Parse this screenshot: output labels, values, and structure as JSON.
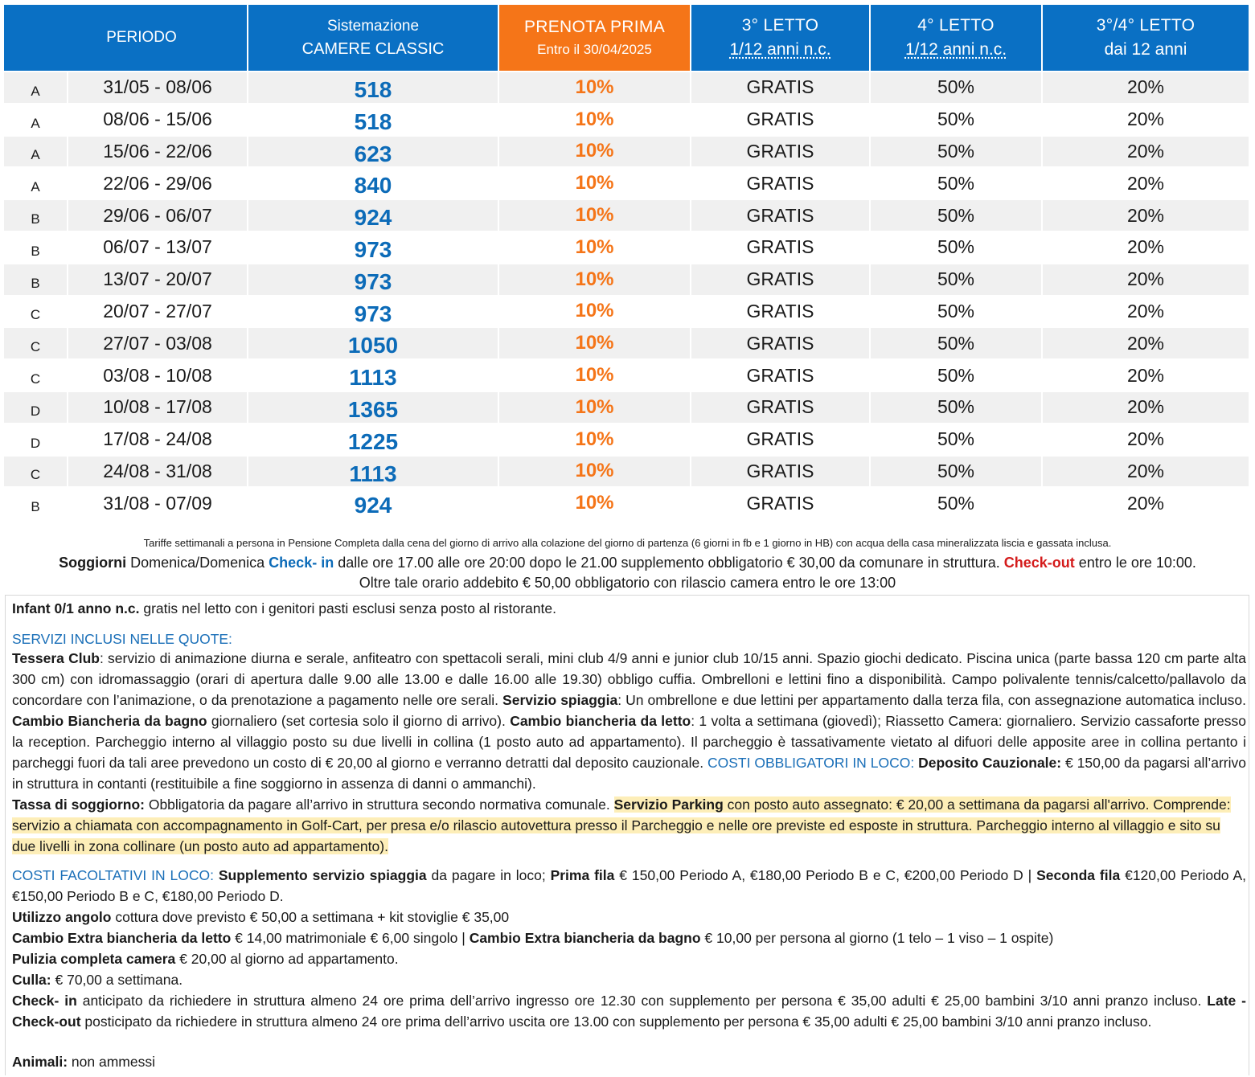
{
  "header": {
    "periodo": "PERIODO",
    "sistemazione_l1": "Sistemazione",
    "sistemazione_l2": "CAMERE CLASSIC",
    "prenota_l1": "PRENOTA PRIMA",
    "prenota_l2": "Entro il 30/04/2025",
    "letto3_l1": "3° LETTO",
    "letto3_l2": "1/12 anni n.c.",
    "letto4_l1": "4° LETTO",
    "letto4_l2": "1/12 anni n.c.",
    "letto34_l1": "3°/4° LETTO",
    "letto34_l2": "dai 12 anni"
  },
  "rows": [
    {
      "cat": "A",
      "period": "31/05 - 08/06",
      "price": "518",
      "disc": "10%",
      "l3": "GRATIS",
      "l4": "50%",
      "l34": "20%"
    },
    {
      "cat": "A",
      "period": "08/06 - 15/06",
      "price": "518",
      "disc": "10%",
      "l3": "GRATIS",
      "l4": "50%",
      "l34": "20%"
    },
    {
      "cat": "A",
      "period": "15/06 - 22/06",
      "price": "623",
      "disc": "10%",
      "l3": "GRATIS",
      "l4": "50%",
      "l34": "20%"
    },
    {
      "cat": "A",
      "period": "22/06 - 29/06",
      "price": "840",
      "disc": "10%",
      "l3": "GRATIS",
      "l4": "50%",
      "l34": "20%"
    },
    {
      "cat": "B",
      "period": "29/06 - 06/07",
      "price": "924",
      "disc": "10%",
      "l3": "GRATIS",
      "l4": "50%",
      "l34": "20%"
    },
    {
      "cat": "B",
      "period": "06/07 - 13/07",
      "price": "973",
      "disc": "10%",
      "l3": "GRATIS",
      "l4": "50%",
      "l34": "20%"
    },
    {
      "cat": "B",
      "period": "13/07 - 20/07",
      "price": "973",
      "disc": "10%",
      "l3": "GRATIS",
      "l4": "50%",
      "l34": "20%"
    },
    {
      "cat": "C",
      "period": "20/07 - 27/07",
      "price": "973",
      "disc": "10%",
      "l3": "GRATIS",
      "l4": "50%",
      "l34": "20%"
    },
    {
      "cat": "C",
      "period": "27/07 - 03/08",
      "price": "1050",
      "disc": "10%",
      "l3": "GRATIS",
      "l4": "50%",
      "l34": "20%"
    },
    {
      "cat": "C",
      "period": "03/08 - 10/08",
      "price": "1113",
      "disc": "10%",
      "l3": "GRATIS",
      "l4": "50%",
      "l34": "20%"
    },
    {
      "cat": "D",
      "period": "10/08 - 17/08",
      "price": "1365",
      "disc": "10%",
      "l3": "GRATIS",
      "l4": "50%",
      "l34": "20%"
    },
    {
      "cat": "D",
      "period": "17/08 - 24/08",
      "price": "1225",
      "disc": "10%",
      "l3": "GRATIS",
      "l4": "50%",
      "l34": "20%"
    },
    {
      "cat": "C",
      "period": "24/08 - 31/08",
      "price": "1113",
      "disc": "10%",
      "l3": "GRATIS",
      "l4": "50%",
      "l34": "20%"
    },
    {
      "cat": "B",
      "period": "31/08 - 07/09",
      "price": "924",
      "disc": "10%",
      "l3": "GRATIS",
      "l4": "50%",
      "l34": "20%"
    }
  ],
  "notes": {
    "tariffe": "Tariffe settimanali a persona in Pensione Completa dalla cena del giorno di arrivo alla colazione del giorno di partenza (6 giorni in fb e 1 giorno in HB) con acqua della casa mineralizzata liscia e gassata inclusa.",
    "soggiorni_bold": "Soggiorni",
    "soggiorni_text": " Domenica/Domenica ",
    "checkin_label": "Check- in",
    "checkin_text": " dalle ore 17.00 alle ore 20:00 dopo le 21.00 supplemento obbligatorio € 30,00 da comunare in struttura. ",
    "checkout_label": "Check-out",
    "checkout_text": " entro le ore 10:00.",
    "oltre": "Oltre tale orario addebito € 50,00 obbligatorio con rilascio camera entro le ore 13:00"
  },
  "details": {
    "infant_bold": "Infant 0/1 anno n.c.",
    "infant_text": " gratis nel letto con i genitori pasti esclusi senza posto al ristorante.",
    "servizi_title": "SERVIZI INCLUSI NELLE QUOTE:",
    "tessera_bold": "Tessera Club",
    "tessera_text": ": servizio di animazione diurna e serale, anfiteatro con spettacoli serali, mini club 4/9 anni e junior club 10/15 anni. Spazio giochi dedicato. Piscina unica (parte bassa 120 cm parte alta 300 cm) con idromassaggio (orari di apertura dalle 9.00 alle 13.00 e dalle 16.00 alle 19.30) obbligo cuffia. Ombrelloni e lettini fino a disponibilità. Campo polivalente tennis/calcetto/pallavolo da concordare con l’animazione, o da prenotazione a pagamento nelle ore serali. ",
    "spiaggia_bold": "Servizio spiaggia",
    "spiaggia_text": ": Un ombrellone e due lettini per appartamento dalla terza fila, con assegnazione automatica incluso. ",
    "bagno_bold": "Cambio Biancheria da bagno",
    "bagno_text": " giornaliero (set cortesia solo il giorno di arrivo). ",
    "letto_bold": "Cambio biancheria da letto",
    "letto_text": ": 1 volta a settimana (giovedì); Riassetto Camera: giornaliero. Servizio cassaforte presso la reception. Parcheggio interno al villaggio posto su due livelli in collina (1 posto auto ad appartamento). Il parcheggio è tassativamente vietato al difuori delle apposite aree in collina pertanto i parcheggi fuori da tali aree prevedono un costo di € 20,00 al giorno e verranno detratti dal deposito cauzionale. ",
    "costi_obb_title": "COSTI OBBLIGATORI IN LOCO:",
    "deposito_bold": " Deposito Cauzionale:",
    "deposito_text": " € 150,00 da pagarsi all’arrivo in struttura in contanti (restituibile a fine soggiorno in assenza di danni o ammanchi).",
    "tassa_bold": "Tassa di soggiorno:",
    "tassa_text": " Obbligatoria da pagare all’arrivo in struttura secondo normativa comunale. ",
    "parking_bold": "Servizio Parking",
    "parking_text": " con posto auto assegnato: € 20,00 a settimana da pagarsi all'arrivo. Comprende: servizio a chiamata con accompagnamento in Golf-Cart, per presa e/o rilascio autovettura presso il Parcheggio e nelle ore previste ed esposte in struttura. Parcheggio interno al villaggio e sito su due livelli in zona collinare (un posto auto ad appartamento).",
    "costi_fac_title": "COSTI FACOLTATIVI IN LOCO:",
    "supp_bold": " Supplemento servizio spiaggia",
    "supp_text": " da pagare in loco; ",
    "prima_bold": "Prima fila",
    "prima_text": " € 150,00 Periodo A, €180,00 Periodo B e C, €200,00 Periodo D | ",
    "seconda_bold": "Seconda fila",
    "seconda_text": " €120,00 Periodo A, €150,00 Periodo B e C, €180,00 Periodo D.",
    "angolo_bold": "Utilizzo angolo",
    "angolo_text": " cottura dove previsto € 50,00 a settimana + kit stoviglie € 35,00",
    "extra_letto_bold": "Cambio Extra biancheria da letto",
    "extra_letto_text": " € 14,00 matrimoniale € 6,00 singolo | ",
    "extra_bagno_bold": "Cambio Extra biancheria da bagno",
    "extra_bagno_text": " € 10,00 per persona al giorno (1 telo – 1 viso – 1 ospite)",
    "pulizia_bold": "Pulizia completa camera",
    "pulizia_text": " € 20,00 al giorno ad appartamento.",
    "culla_bold": "Culla:",
    "culla_text": " € 70,00 a settimana.",
    "checkin_bold": "Check- in",
    "checkin_text": " anticipato da richiedere in struttura almeno 24 ore prima dell’arrivo ingresso ore 12.30 con supplemento per persona € 35,00 adulti € 25,00 bambini 3/10 anni pranzo incluso. ",
    "late_bold": "Late - Check-out",
    "late_text": " posticipato da richiedere in struttura almeno 24 ore prima dell’arrivo uscita ore 13.00 con supplemento per persona € 35,00 adulti € 25,00 bambini 3/10 anni pranzo incluso.",
    "animali_bold": "Animali:",
    "animali_text": " non ammessi"
  }
}
